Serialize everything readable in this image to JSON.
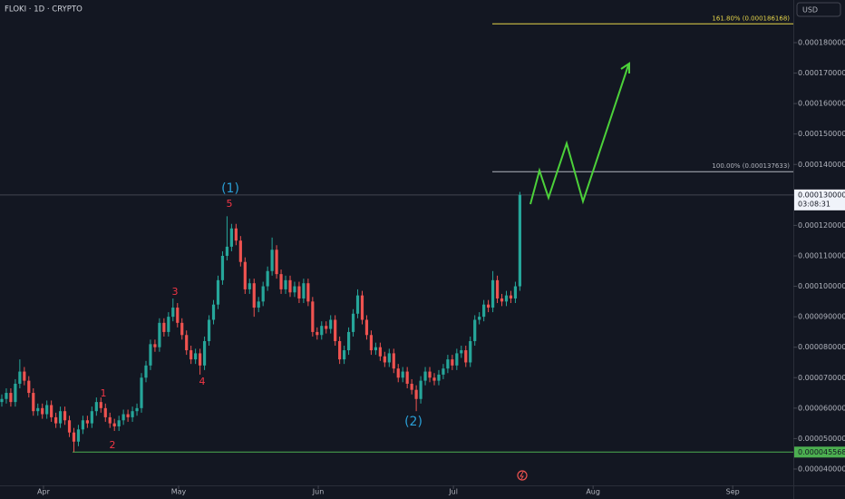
{
  "chart_data": {
    "type": "candlestick",
    "title": "FLOKI · 1D · CRYPTO",
    "currency": "USD",
    "up_color": "#26a69a",
    "down_color": "#ef5350",
    "grid": false,
    "xlim": [
      -0.4,
      175.7
    ],
    "xticks": [
      {
        "value": 9.25,
        "label": "Apr"
      },
      {
        "value": 39.25,
        "label": "May"
      },
      {
        "value": 70.25,
        "label": "Jun"
      },
      {
        "value": 100.25,
        "label": "Jul"
      },
      {
        "value": 131.25,
        "label": "Aug"
      },
      {
        "value": 162.25,
        "label": "Sep"
      }
    ],
    "ylim": [
      3.463e-05,
      0.000194
    ],
    "yticks": [
      {
        "value": 4e-05,
        "label": "0.0000400000"
      },
      {
        "value": 5e-05,
        "label": "0.0000500000"
      },
      {
        "value": 6e-05,
        "label": "0.0000600000"
      },
      {
        "value": 7e-05,
        "label": "0.0000700000"
      },
      {
        "value": 8e-05,
        "label": "0.0000800000"
      },
      {
        "value": 9e-05,
        "label": "0.0000900000"
      },
      {
        "value": 0.0001,
        "label": "0.0001000000"
      },
      {
        "value": 0.00011,
        "label": "0.0001100000"
      },
      {
        "value": 0.00012,
        "label": "0.0001200000"
      },
      {
        "value": 0.00013,
        "label": "0.0001300000"
      },
      {
        "value": 0.00014,
        "label": "0.0001400000"
      },
      {
        "value": 0.00015,
        "label": "0.0001500000"
      },
      {
        "value": 0.00016,
        "label": "0.0001600000"
      },
      {
        "value": 0.00017,
        "label": "0.0001700000"
      },
      {
        "value": 0.00018,
        "label": "0.0001800000"
      }
    ],
    "levels": [
      {
        "label": "161.80% (0.000186168)",
        "value": 0.000186168,
        "color": "#e6d54a"
      },
      {
        "label": "100.00% (0.000137633)",
        "value": 0.000137633,
        "color": "#b2b5be"
      }
    ],
    "support": {
      "value": 4.5568e-05,
      "label": "0.000045568",
      "color": "#4caf50"
    },
    "last_price": {
      "value": 0.0001300003,
      "label": "0.0001300003",
      "countdown": "03:08:31"
    },
    "wave_labels": [
      "(1)",
      "(2)",
      "1",
      "2",
      "3",
      "4",
      "5"
    ],
    "candles": [
      [
        6.2e-05,
        6.45e-05,
        6.05e-05,
        6.3e-05
      ],
      [
        6.3e-05,
        6.65e-05,
        6.15e-05,
        6.5e-05
      ],
      [
        6.5e-05,
        6.65e-05,
        6.05e-05,
        6.2e-05
      ],
      [
        6.2e-05,
        6.95e-05,
        6.05e-05,
        6.8e-05
      ],
      [
        6.8e-05,
        7.6e-05,
        6.65e-05,
        7.2e-05
      ],
      [
        7.2e-05,
        7.35e-05,
        6.75e-05,
        6.9e-05
      ],
      [
        6.9e-05,
        7.05e-05,
        6.35e-05,
        6.5e-05
      ],
      [
        6.5e-05,
        6.65e-05,
        5.75e-05,
        5.9e-05
      ],
      [
        5.9e-05,
        6.15e-05,
        5.75e-05,
        6e-05
      ],
      [
        6e-05,
        6.15e-05,
        5.65e-05,
        5.8e-05
      ],
      [
        5.8e-05,
        6.25e-05,
        5.65e-05,
        6.1e-05
      ],
      [
        6.1e-05,
        6.25e-05,
        5.55e-05,
        5.7e-05
      ],
      [
        5.7e-05,
        5.85e-05,
        5.35e-05,
        5.5e-05
      ],
      [
        5.5e-05,
        6.05e-05,
        5.35e-05,
        5.9e-05
      ],
      [
        5.9e-05,
        6.05e-05,
        5.45e-05,
        5.6e-05
      ],
      [
        5.6e-05,
        5.75e-05,
        5.05e-05,
        5.2e-05
      ],
      [
        5.2e-05,
        5.35e-05,
        4.5568e-05,
        4.9e-05
      ],
      [
        4.9e-05,
        5.45e-05,
        4.75e-05,
        5.3e-05
      ],
      [
        5.3e-05,
        5.75e-05,
        5.15e-05,
        5.6e-05
      ],
      [
        5.6e-05,
        5.75e-05,
        5.35e-05,
        5.5e-05
      ],
      [
        5.5e-05,
        6.05e-05,
        5.35e-05,
        5.9e-05
      ],
      [
        5.9e-05,
        6.35e-05,
        5.75e-05,
        6.2e-05
      ],
      [
        6.2e-05,
        6.35e-05,
        5.85e-05,
        6e-05
      ],
      [
        6e-05,
        6.15e-05,
        5.55e-05,
        5.7e-05
      ],
      [
        5.7e-05,
        5.85e-05,
        5.35e-05,
        5.5e-05
      ],
      [
        5.5e-05,
        5.65e-05,
        5.25e-05,
        5.4e-05
      ],
      [
        5.4e-05,
        5.75e-05,
        5.25e-05,
        5.6e-05
      ],
      [
        5.6e-05,
        5.95e-05,
        5.45e-05,
        5.8e-05
      ],
      [
        5.8e-05,
        5.95e-05,
        5.55e-05,
        5.7e-05
      ],
      [
        5.7e-05,
        6.05e-05,
        5.55e-05,
        5.9e-05
      ],
      [
        5.9e-05,
        6.15e-05,
        5.75e-05,
        6e-05
      ],
      [
        6e-05,
        7.15e-05,
        5.85e-05,
        7e-05
      ],
      [
        7e-05,
        7.55e-05,
        6.85e-05,
        7.4e-05
      ],
      [
        7.4e-05,
        8.25e-05,
        7.25e-05,
        8.1e-05
      ],
      [
        8.1e-05,
        8.25e-05,
        7.85e-05,
        8e-05
      ],
      [
        8e-05,
        8.95e-05,
        7.85e-05,
        8.8e-05
      ],
      [
        8.8e-05,
        8.95e-05,
        8.35e-05,
        8.5e-05
      ],
      [
        8.5e-05,
        9.15e-05,
        8.35e-05,
        9e-05
      ],
      [
        9e-05,
        9.6e-05,
        8.85e-05,
        9.3e-05
      ],
      [
        9.3e-05,
        9.45e-05,
        8.65e-05,
        8.8e-05
      ],
      [
        8.8e-05,
        8.95e-05,
        8.25e-05,
        8.4e-05
      ],
      [
        8.4e-05,
        8.55e-05,
        7.75e-05,
        7.9e-05
      ],
      [
        7.9e-05,
        8.05e-05,
        7.45e-05,
        7.6e-05
      ],
      [
        7.6e-05,
        7.95e-05,
        7.45e-05,
        7.8e-05
      ],
      [
        7.8e-05,
        7.95e-05,
        7.1e-05,
        7.4e-05
      ],
      [
        7.4e-05,
        8.35e-05,
        7.25e-05,
        8.2e-05
      ],
      [
        8.2e-05,
        9.05e-05,
        8.05e-05,
        8.9e-05
      ],
      [
        8.9e-05,
        9.55e-05,
        8.75e-05,
        9.4e-05
      ],
      [
        9.4e-05,
        0.0001035,
        9.25e-05,
        0.000102
      ],
      [
        0.000102,
        0.0001115,
        0.0001005,
        0.00011
      ],
      [
        0.00011,
        0.000123,
        0.0001085,
        0.000113
      ],
      [
        0.000113,
        0.0001205,
        0.0001115,
        0.000119
      ],
      [
        0.000119,
        0.0001205,
        0.0001135,
        0.000115
      ],
      [
        0.000115,
        0.0001165,
        0.0001065,
        0.000108
      ],
      [
        0.000108,
        0.0001095,
        9.75e-05,
        9.9e-05
      ],
      [
        9.9e-05,
        0.0001025,
        9.75e-05,
        0.000101
      ],
      [
        0.000101,
        0.0001025,
        9e-05,
        9.3e-05
      ],
      [
        9.3e-05,
        9.65e-05,
        9.15e-05,
        9.5e-05
      ],
      [
        9.5e-05,
        0.0001015,
        9.35e-05,
        0.0001
      ],
      [
        0.0001,
        0.0001065,
        9.85e-05,
        0.000105
      ],
      [
        0.000105,
        0.000116,
        0.0001035,
        0.000112
      ],
      [
        0.000112,
        0.0001135,
        0.0001025,
        0.000104
      ],
      [
        0.000104,
        0.0001055,
        9.75e-05,
        9.9e-05
      ],
      [
        9.9e-05,
        0.0001035,
        9.75e-05,
        0.000102
      ],
      [
        0.000102,
        0.0001035,
        9.65e-05,
        9.8e-05
      ],
      [
        9.8e-05,
        0.0001015,
        9.65e-05,
        0.0001
      ],
      [
        0.0001,
        0.0001015,
        9.45e-05,
        9.6e-05
      ],
      [
        9.6e-05,
        0.0001025,
        9.45e-05,
        0.000101
      ],
      [
        0.000101,
        0.0001025,
        9.35e-05,
        9.5e-05
      ],
      [
        9.5e-05,
        9.65e-05,
        8.35e-05,
        8.5e-05
      ],
      [
        8.5e-05,
        8.65e-05,
        8.25e-05,
        8.4e-05
      ],
      [
        8.4e-05,
        8.85e-05,
        8.25e-05,
        8.7e-05
      ],
      [
        8.7e-05,
        8.85e-05,
        8.45e-05,
        8.6e-05
      ],
      [
        8.6e-05,
        9.05e-05,
        8.45e-05,
        8.9e-05
      ],
      [
        8.9e-05,
        9.05e-05,
        8.05e-05,
        8.2e-05
      ],
      [
        8.2e-05,
        8.35e-05,
        7.45e-05,
        7.6e-05
      ],
      [
        7.6e-05,
        8.05e-05,
        7.45e-05,
        7.9e-05
      ],
      [
        7.9e-05,
        8.65e-05,
        7.75e-05,
        8.5e-05
      ],
      [
        8.5e-05,
        9.25e-05,
        8.35e-05,
        9.1e-05
      ],
      [
        9.1e-05,
        9.9e-05,
        8.95e-05,
        9.7e-05
      ],
      [
        9.7e-05,
        9.85e-05,
        8.75e-05,
        8.9e-05
      ],
      [
        8.9e-05,
        9.05e-05,
        8.25e-05,
        8.4e-05
      ],
      [
        8.4e-05,
        8.55e-05,
        7.75e-05,
        7.9e-05
      ],
      [
        7.9e-05,
        8.15e-05,
        7.75e-05,
        8e-05
      ],
      [
        8e-05,
        8.15e-05,
        7.55e-05,
        7.7e-05
      ],
      [
        7.7e-05,
        7.85e-05,
        7.35e-05,
        7.5e-05
      ],
      [
        7.5e-05,
        7.95e-05,
        7.35e-05,
        7.8e-05
      ],
      [
        7.8e-05,
        7.95e-05,
        7.15e-05,
        7.3e-05
      ],
      [
        7.3e-05,
        7.45e-05,
        6.85e-05,
        7e-05
      ],
      [
        7e-05,
        7.35e-05,
        6.85e-05,
        7.2e-05
      ],
      [
        7.2e-05,
        7.35e-05,
        6.65e-05,
        6.8e-05
      ],
      [
        6.8e-05,
        6.95e-05,
        6.45e-05,
        6.6e-05
      ],
      [
        6.6e-05,
        6.75e-05,
        5.9e-05,
        6.3e-05
      ],
      [
        6.3e-05,
        7.05e-05,
        6.15e-05,
        6.9e-05
      ],
      [
        6.9e-05,
        7.35e-05,
        6.75e-05,
        7.2e-05
      ],
      [
        7.2e-05,
        7.35e-05,
        6.85e-05,
        7e-05
      ],
      [
        7e-05,
        7.15e-05,
        6.75e-05,
        6.9e-05
      ],
      [
        6.9e-05,
        7.25e-05,
        6.75e-05,
        7.1e-05
      ],
      [
        7.1e-05,
        7.45e-05,
        6.95e-05,
        7.3e-05
      ],
      [
        7.3e-05,
        7.75e-05,
        7.15e-05,
        7.6e-05
      ],
      [
        7.6e-05,
        7.75e-05,
        7.25e-05,
        7.4e-05
      ],
      [
        7.4e-05,
        7.95e-05,
        7.25e-05,
        7.8e-05
      ],
      [
        7.8e-05,
        8.05e-05,
        7.65e-05,
        7.9e-05
      ],
      [
        7.9e-05,
        8.05e-05,
        7.35e-05,
        7.5e-05
      ],
      [
        7.5e-05,
        8.35e-05,
        7.35e-05,
        8.2e-05
      ],
      [
        8.2e-05,
        9.05e-05,
        8.05e-05,
        8.9e-05
      ],
      [
        8.9e-05,
        9.15e-05,
        8.75e-05,
        9e-05
      ],
      [
        9e-05,
        9.55e-05,
        8.85e-05,
        9.4e-05
      ],
      [
        9.4e-05,
        9.55e-05,
        9.15e-05,
        9.3e-05
      ],
      [
        9.3e-05,
        0.000105,
        9.15e-05,
        0.000102
      ],
      [
        0.000102,
        0.0001035,
        9.45e-05,
        9.6e-05
      ],
      [
        9.6e-05,
        9.75e-05,
        9.35e-05,
        9.5e-05
      ],
      [
        9.5e-05,
        9.85e-05,
        9.35e-05,
        9.7e-05
      ],
      [
        9.7e-05,
        9.85e-05,
        9.45e-05,
        9.6e-05
      ],
      [
        9.6e-05,
        0.0001015,
        9.45e-05,
        0.0001
      ],
      [
        0.0001,
        0.000131,
        9.85e-05,
        0.000130003
      ]
    ]
  }
}
